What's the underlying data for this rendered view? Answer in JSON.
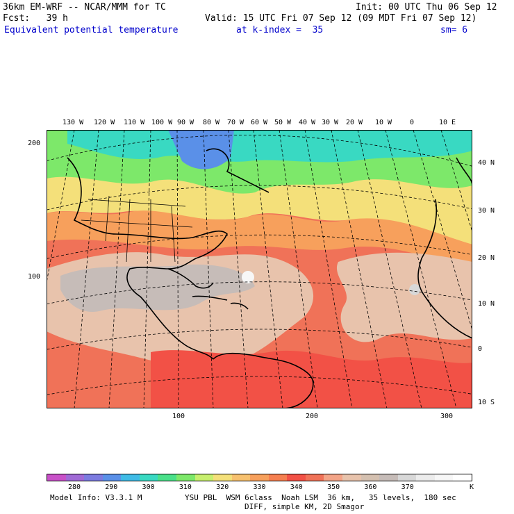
{
  "header": {
    "model": "36km EM-WRF -- NCAR/MMM for TC",
    "init": "Init: 00 UTC Thu 06 Sep 12",
    "fcst": "Fcst:   39 h",
    "valid": "Valid: 15 UTC Fri 07 Sep 12 (09 MDT Fri 07 Sep 12)",
    "field": "Equivalent potential temperature",
    "level": "at k-index =  35",
    "smoothing": "sm= 6"
  },
  "map": {
    "top_lon_labels": [
      "130 W",
      "120 W",
      "110 W",
      "100 W",
      "90 W",
      "80 W",
      "70 W",
      "60 W",
      "50 W",
      "40 W",
      "30 W",
      "20 W",
      "10 W",
      "0",
      "10 E"
    ],
    "right_lat_labels": [
      "40 N",
      "30 N",
      "20 N",
      "10 N",
      "0",
      "10 S"
    ],
    "left_grid_labels": [
      "200",
      "100"
    ],
    "bottom_grid_labels": [
      "100",
      "200",
      "300"
    ]
  },
  "colorbar": {
    "colors": [
      "#c851c8",
      "#a06ad6",
      "#7c7be0",
      "#5a90e8",
      "#3fbbe6",
      "#39d9c2",
      "#4ae089",
      "#7de86a",
      "#c7ef6e",
      "#f4e07a",
      "#f7c16f",
      "#f7a05c",
      "#f57f50",
      "#f25146",
      "#f07258",
      "#f3a487",
      "#e8c3ac",
      "#d4c0b0",
      "#c6bcb8",
      "#d8d8d8",
      "#ececec",
      "#f7f7f7",
      "#ffffff"
    ],
    "labels": [
      "280",
      "290",
      "300",
      "310",
      "320",
      "330",
      "340",
      "350",
      "360",
      "370"
    ],
    "units": "K"
  },
  "footer": {
    "line1_left": "Model Info: V3.3.1 M",
    "line1_right": "YSU PBL  WSM 6class  Noah LSM  36 km,   35 levels,  180 sec",
    "line2": "DIFF, simple KM, 2D Smagor"
  }
}
